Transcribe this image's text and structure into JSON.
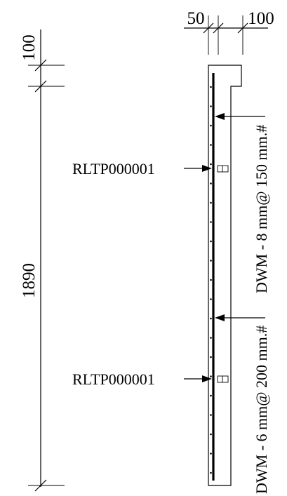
{
  "dimensions": {
    "top_left": "50",
    "top_right": "100",
    "side_top": "100",
    "side_main": "1890"
  },
  "labels": {
    "anchor_upper": "RLTP000001",
    "anchor_lower": "RLTP000001",
    "mesh_upper": "DWM - 8 mm@ 150 mm.#",
    "mesh_lower": "DWM - 6 mm@ 200 mm.#"
  },
  "colors": {
    "ink": "#000000",
    "background": "#ffffff"
  }
}
